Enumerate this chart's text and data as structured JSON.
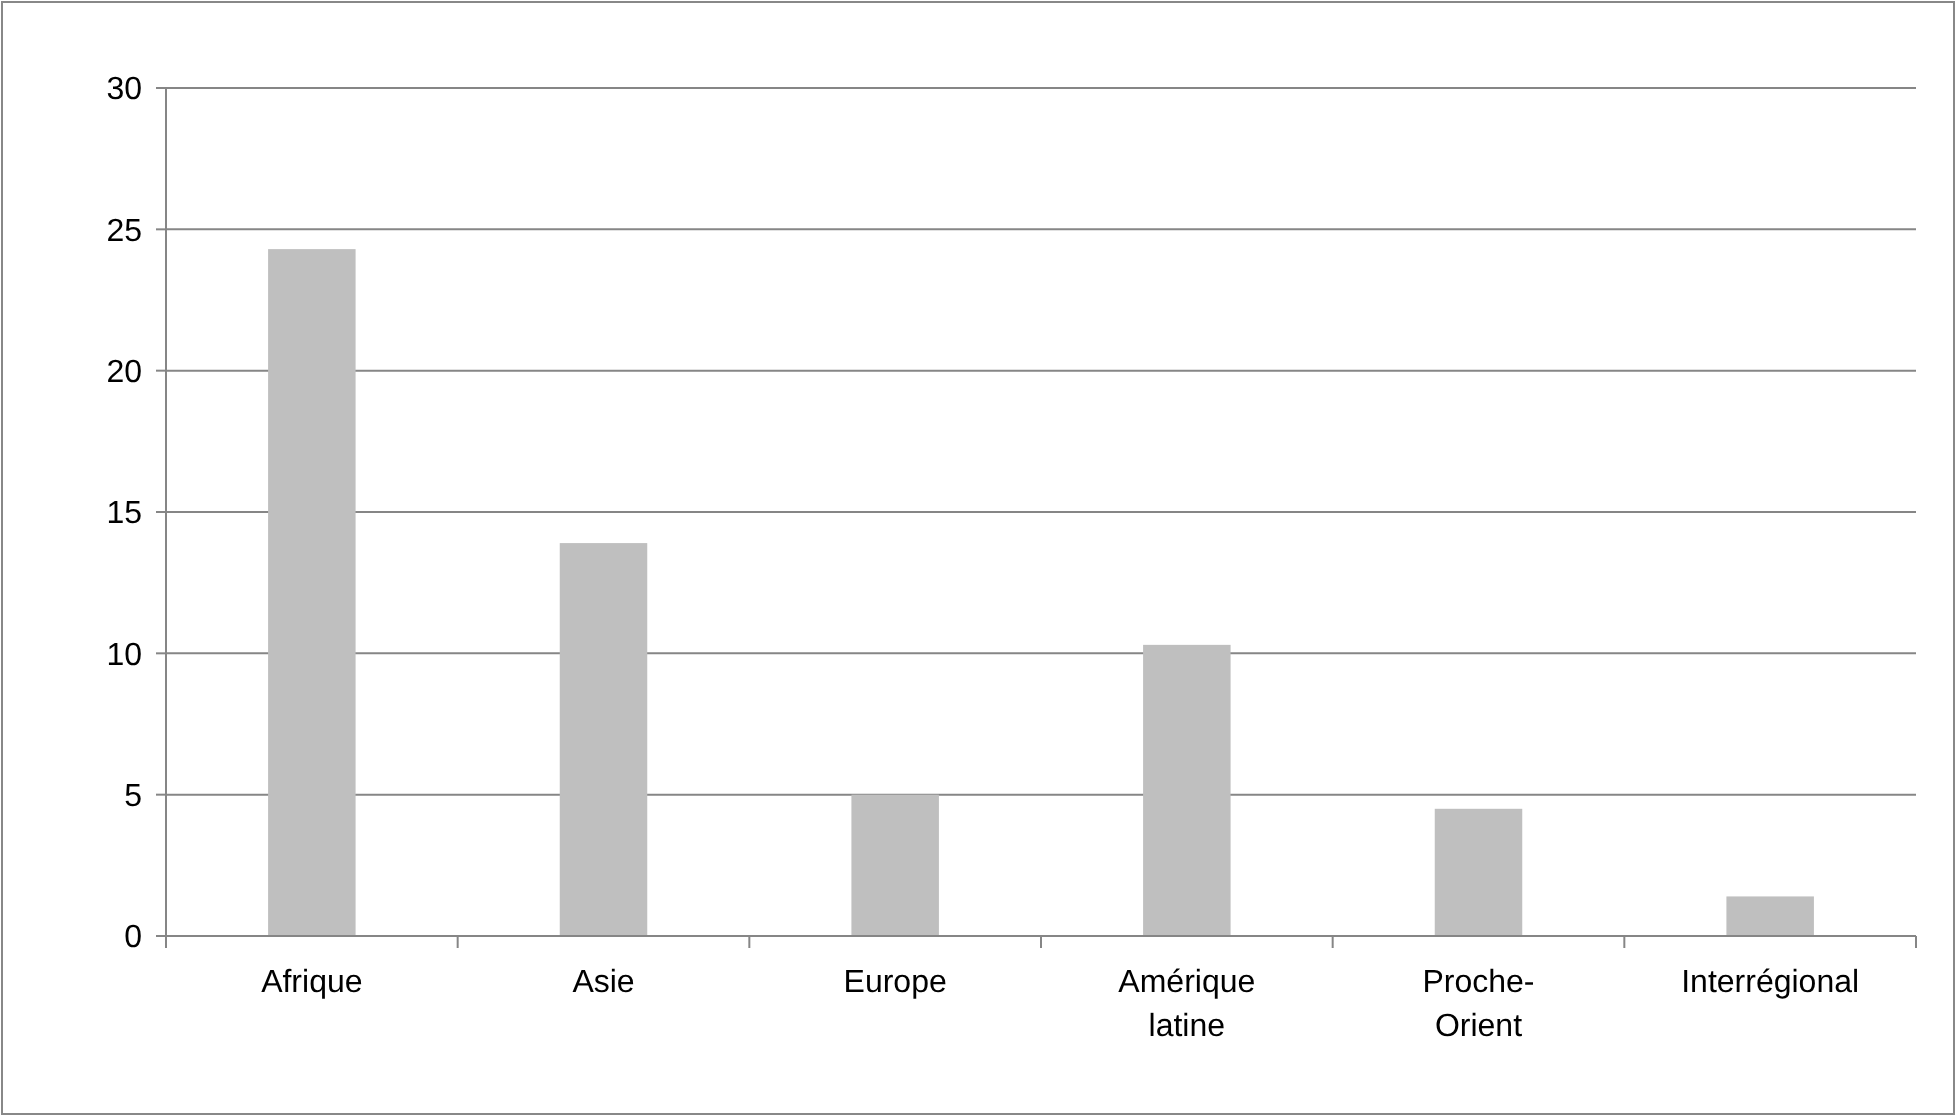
{
  "chart_data": {
    "type": "bar",
    "categories": [
      "Afrique",
      "Asie",
      "Europe",
      "Amérique latine",
      "Proche-Orient",
      "Interrégional"
    ],
    "values": [
      24.3,
      13.9,
      5.0,
      10.3,
      4.5,
      1.4
    ],
    "color": "#bfbfbf",
    "ylim": [
      0,
      30
    ],
    "yticks": [
      0,
      5,
      10,
      15,
      20,
      25,
      30
    ],
    "grid": "y"
  }
}
